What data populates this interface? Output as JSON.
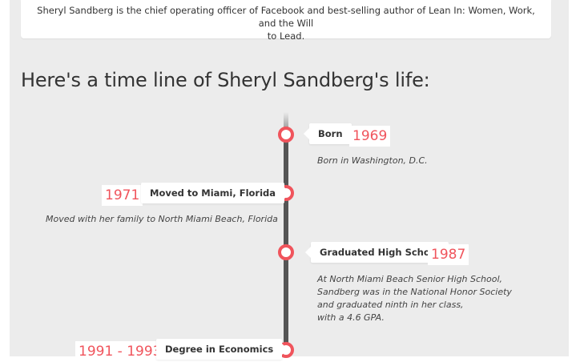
{
  "intro": {
    "line1": "Sheryl Sandberg is the chief operating officer of Facebook and best-selling author of Lean In: Women, Work, and the Will",
    "line2": "to Lead."
  },
  "heading": "Here's a time line of Sheryl Sandberg's life:",
  "colors": {
    "accent": "#f0545c",
    "timeline": "#555555",
    "panel": "#ececec"
  },
  "events": [
    {
      "label": "Born",
      "year": "1969",
      "desc": [
        "Born in Washington, D.C."
      ]
    },
    {
      "label": "Moved to Miami, Florida",
      "year": "1971",
      "desc": [
        "Moved with her family to North Miami Beach, Florida"
      ]
    },
    {
      "label": "Graduated High School",
      "year": "1987",
      "desc": [
        "At North Miami Beach Senior High School,",
        "Sandberg was in the National Honor Society",
        "and graduated ninth in her class,",
        "with a 4.6 GPA."
      ]
    },
    {
      "label": "Degree in Economics",
      "year": "1991 - 1993",
      "desc": []
    }
  ]
}
